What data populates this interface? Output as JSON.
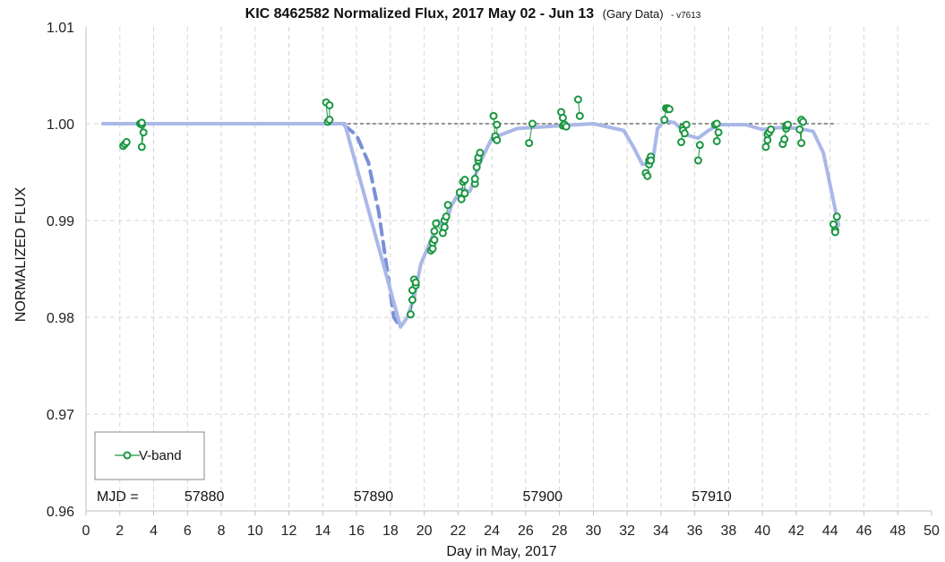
{
  "chart_data": {
    "type": "scatter",
    "title": "KIC 8462582 Normalized Flux, 2017 May 02 - Jun 13",
    "title_source": "(Gary Data)",
    "title_version": "- v7613",
    "xlabel": "Day in May, 2017",
    "ylabel": "NORMALIZED FLUX",
    "xlim": [
      0,
      50
    ],
    "ylim": [
      0.96,
      1.01
    ],
    "x_ticks": [
      0,
      2,
      4,
      6,
      8,
      10,
      12,
      14,
      16,
      18,
      20,
      22,
      24,
      26,
      28,
      30,
      32,
      34,
      36,
      38,
      40,
      42,
      44,
      46,
      48,
      50
    ],
    "y_ticks": [
      "0.96",
      "0.97",
      "0.98",
      "0.99",
      "1.00",
      "1.01"
    ],
    "grid": "dashed",
    "legend": {
      "placement": "bottom-left",
      "entries": [
        "V-band"
      ]
    },
    "mjd_label": "MJD =",
    "mjd_marks": [
      {
        "label": "57880",
        "x": 7
      },
      {
        "label": "57890",
        "x": 17
      },
      {
        "label": "57900",
        "x": 27
      },
      {
        "label": "57910",
        "x": 37
      }
    ],
    "colors": {
      "vband": "#1a9641",
      "model": "#aab8e8",
      "model_dashed": "#7a8fd6",
      "reference": "#555555"
    },
    "reference_line": {
      "y": 1.0,
      "x": [
        1,
        44.3
      ]
    },
    "series": [
      {
        "name": "V-band",
        "points": [
          [
            2.2,
            0.9977
          ],
          [
            2.3,
            0.9979
          ],
          [
            2.4,
            0.9981
          ],
          [
            3.2,
            1.0
          ],
          [
            3.3,
            0.9999
          ],
          [
            3.3,
            1.0001
          ],
          [
            3.3,
            0.9976
          ],
          [
            3.4,
            0.9991
          ],
          [
            14.2,
            1.0022
          ],
          [
            14.3,
            1.0002
          ],
          [
            14.4,
            1.0004
          ],
          [
            14.4,
            1.0019
          ],
          [
            19.2,
            0.9803
          ],
          [
            19.3,
            0.9818
          ],
          [
            19.3,
            0.9828
          ],
          [
            19.4,
            0.9839
          ],
          [
            19.5,
            0.9833
          ],
          [
            19.5,
            0.9836
          ],
          [
            20.4,
            0.9869
          ],
          [
            20.5,
            0.9871
          ],
          [
            20.5,
            0.9877
          ],
          [
            20.6,
            0.988
          ],
          [
            20.6,
            0.9889
          ],
          [
            20.7,
            0.9897
          ],
          [
            21.1,
            0.9887
          ],
          [
            21.2,
            0.9893
          ],
          [
            21.2,
            0.99
          ],
          [
            21.3,
            0.9904
          ],
          [
            21.4,
            0.9916
          ],
          [
            22.1,
            0.9929
          ],
          [
            22.2,
            0.9922
          ],
          [
            22.3,
            0.994
          ],
          [
            22.4,
            0.9942
          ],
          [
            22.4,
            0.9928
          ],
          [
            23.0,
            0.9938
          ],
          [
            23.0,
            0.9943
          ],
          [
            23.1,
            0.9955
          ],
          [
            23.2,
            0.9962
          ],
          [
            23.2,
            0.9965
          ],
          [
            23.3,
            0.997
          ],
          [
            24.1,
            1.0008
          ],
          [
            24.2,
            0.9985
          ],
          [
            24.2,
            0.9987
          ],
          [
            24.3,
            0.9983
          ],
          [
            24.3,
            0.9999
          ],
          [
            26.2,
            0.998
          ],
          [
            26.4,
            1.0
          ],
          [
            28.1,
            1.0012
          ],
          [
            28.2,
            1.0006
          ],
          [
            28.2,
            0.9998
          ],
          [
            28.3,
            0.9999
          ],
          [
            28.4,
            0.9997
          ],
          [
            29.1,
            1.0025
          ],
          [
            29.2,
            1.0008
          ],
          [
            33.1,
            0.9949
          ],
          [
            33.2,
            0.9946
          ],
          [
            33.3,
            0.9958
          ],
          [
            33.3,
            0.9962
          ],
          [
            33.4,
            0.9966
          ],
          [
            33.4,
            0.9962
          ],
          [
            34.2,
            1.0004
          ],
          [
            34.3,
            1.0016
          ],
          [
            34.4,
            1.0016
          ],
          [
            34.4,
            1.0015
          ],
          [
            34.5,
            1.0015
          ],
          [
            35.2,
            0.9981
          ],
          [
            35.3,
            0.9996
          ],
          [
            35.3,
            0.9993
          ],
          [
            35.4,
            0.999
          ],
          [
            35.5,
            0.9999
          ],
          [
            36.2,
            0.9962
          ],
          [
            36.3,
            0.9978
          ],
          [
            37.2,
            0.9999
          ],
          [
            37.3,
            1.0
          ],
          [
            37.3,
            0.9982
          ],
          [
            37.4,
            0.9991
          ],
          [
            40.2,
            0.9976
          ],
          [
            40.3,
            0.9983
          ],
          [
            40.3,
            0.9989
          ],
          [
            40.4,
            0.9991
          ],
          [
            40.5,
            0.9994
          ],
          [
            41.2,
            0.9979
          ],
          [
            41.3,
            0.9984
          ],
          [
            41.4,
            0.9995
          ],
          [
            41.4,
            0.9998
          ],
          [
            41.5,
            0.9999
          ],
          [
            42.2,
            0.9994
          ],
          [
            42.3,
            0.998
          ],
          [
            42.3,
            1.0004
          ],
          [
            42.4,
            1.0002
          ],
          [
            44.2,
            0.9896
          ],
          [
            44.3,
            0.989
          ],
          [
            44.3,
            0.9888
          ],
          [
            44.4,
            0.9904
          ]
        ]
      },
      {
        "style": "dashed",
        "points": [
          [
            15.3,
            0.9998
          ],
          [
            16.0,
            0.9988
          ],
          [
            16.7,
            0.996
          ],
          [
            17.3,
            0.991
          ],
          [
            17.8,
            0.985
          ],
          [
            18.2,
            0.98
          ],
          [
            18.6,
            0.979
          ]
        ]
      },
      {
        "style": "solid",
        "points": [
          [
            1.0,
            1.0
          ],
          [
            15.3,
            1.0
          ],
          [
            18.6,
            0.979
          ],
          [
            19.0,
            0.98
          ],
          [
            19.4,
            0.982
          ],
          [
            19.8,
            0.9855
          ],
          [
            20.4,
            0.988
          ],
          [
            20.8,
            0.99
          ],
          [
            21.2,
            0.9892
          ],
          [
            21.6,
            0.9915
          ],
          [
            22.2,
            0.9933
          ],
          [
            22.7,
            0.993
          ],
          [
            23.3,
            0.996
          ],
          [
            24.0,
            0.9985
          ],
          [
            25.5,
            0.9995
          ],
          [
            28.0,
            0.9998
          ],
          [
            30.0,
            1.0
          ],
          [
            31.8,
            0.9993
          ],
          [
            32.4,
            0.9975
          ],
          [
            32.9,
            0.9958
          ],
          [
            33.5,
            0.996
          ],
          [
            33.8,
            0.9995
          ],
          [
            34.2,
            1.0003
          ],
          [
            34.8,
            1.0001
          ],
          [
            35.6,
            0.9988
          ],
          [
            36.2,
            0.9985
          ],
          [
            36.8,
            0.9993
          ],
          [
            37.4,
            0.9999
          ],
          [
            39.0,
            0.9999
          ],
          [
            40.0,
            0.9994
          ],
          [
            41.0,
            0.9996
          ],
          [
            42.2,
            0.9995
          ],
          [
            43.0,
            0.9992
          ],
          [
            43.6,
            0.997
          ],
          [
            44.2,
            0.992
          ],
          [
            44.5,
            0.9895
          ]
        ]
      }
    ]
  }
}
